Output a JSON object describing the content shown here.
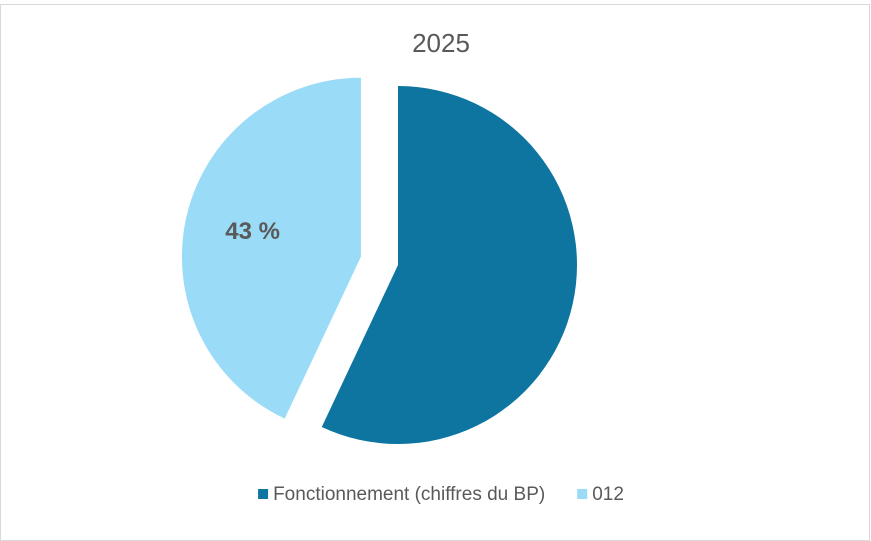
{
  "chart_data": {
    "type": "pie",
    "title": "2025",
    "categories": [
      "Fonctionnement (chiffres du BP)",
      "012"
    ],
    "values": [
      57,
      43
    ],
    "value_labels": [
      null,
      "43 %"
    ],
    "colors": [
      "#0e75a0",
      "#9adbf7"
    ],
    "explode": [
      false,
      true
    ],
    "legend": "bottom"
  }
}
